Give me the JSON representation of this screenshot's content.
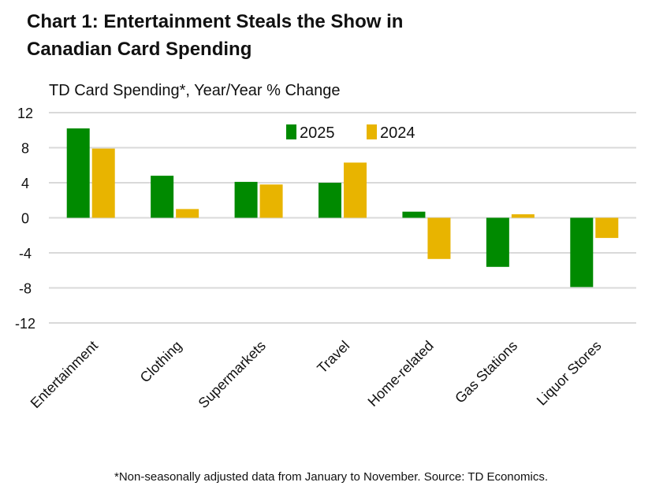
{
  "chart_data": {
    "type": "bar",
    "title": "Chart 1: Entertainment Steals the Show in Canadian Card Spending",
    "title_lines": [
      "Chart 1: Entertainment Steals the Show in",
      "Canadian Card Spending"
    ],
    "subtitle": "TD Card Spending*,  Year/Year % Change",
    "categories": [
      "Entertainment",
      "Clothing",
      "Supermarkets",
      "Travel",
      "Home-related",
      "Gas Stations",
      "Liquor Stores"
    ],
    "series": [
      {
        "name": "2025",
        "color": "#008a00",
        "values": [
          10.2,
          4.8,
          4.1,
          4.0,
          0.7,
          -5.6,
          -7.9
        ]
      },
      {
        "name": "2024",
        "color": "#e8b400",
        "values": [
          7.9,
          1.0,
          3.8,
          6.3,
          -4.7,
          0.4,
          -2.3
        ]
      }
    ],
    "ylim": [
      -12,
      12
    ],
    "yticks": [
      12,
      8,
      4,
      0,
      -4,
      -8,
      -12
    ],
    "grid": true,
    "legend_position": "top-center",
    "footnote": "*Non-seasonally adjusted data from January to November. Source: TD Economics."
  }
}
